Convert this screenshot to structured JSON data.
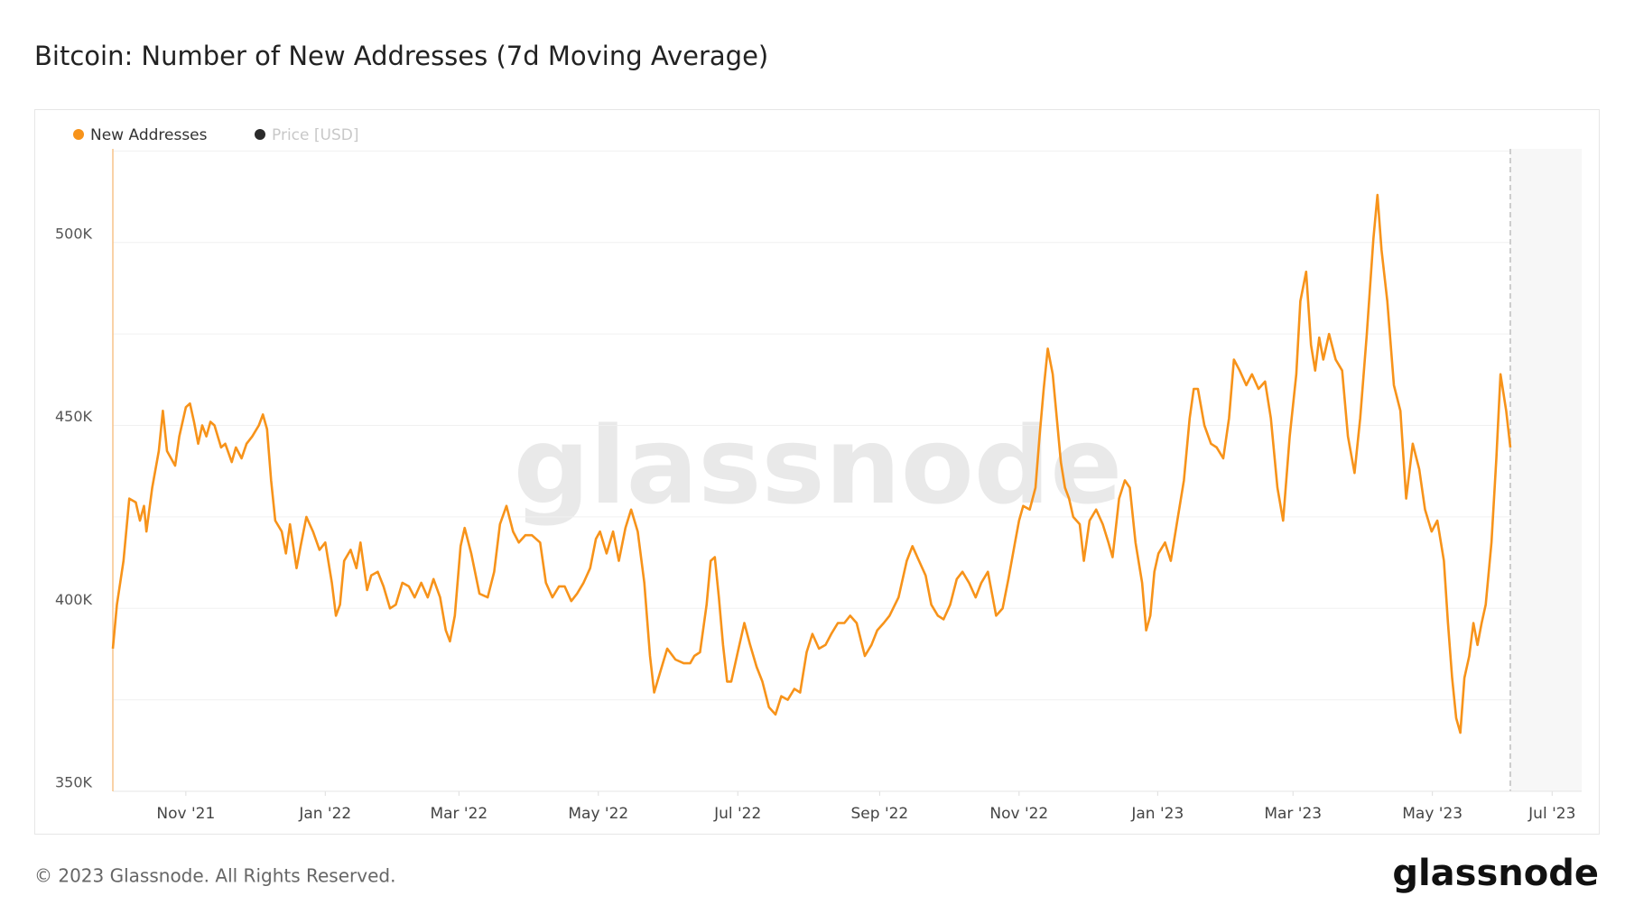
{
  "chart_data": {
    "type": "line",
    "title": "Bitcoin: Number of New Addresses (7d Moving Average)",
    "x": [
      2021.748,
      2021.753,
      2021.761,
      2021.768,
      2021.776,
      2021.781,
      2021.786,
      2021.789,
      2021.796,
      2021.804,
      2021.809,
      2021.814,
      2021.819,
      2021.824,
      2021.829,
      2021.837,
      2021.842,
      2021.847,
      2021.852,
      2021.857,
      2021.862,
      2021.867,
      2021.872,
      2021.88,
      2021.885,
      2021.893,
      2021.898,
      2021.905,
      2021.911,
      2021.918,
      2021.926,
      2021.931,
      2021.936,
      2021.941,
      2021.946,
      2021.954,
      2021.959,
      2021.964,
      2021.972,
      2021.977,
      2021.984,
      2021.992,
      2022.0,
      2022.007,
      2022.015,
      2022.02,
      2022.025,
      2022.03,
      2022.038,
      2022.045,
      2022.05,
      2022.058,
      2022.063,
      2022.071,
      2022.078,
      2022.086,
      2022.093,
      2022.101,
      2022.109,
      2022.116,
      2022.124,
      2022.132,
      2022.139,
      2022.147,
      2022.154,
      2022.159,
      2022.165,
      2022.172,
      2022.177,
      2022.185,
      2022.195,
      2022.205,
      2022.213,
      2022.22,
      2022.228,
      2022.236,
      2022.243,
      2022.251,
      2022.259,
      2022.269,
      2022.276,
      2022.284,
      2022.292,
      2022.299,
      2022.307,
      2022.314,
      2022.322,
      2022.33,
      2022.337,
      2022.342,
      2022.35,
      2022.358,
      2022.365,
      2022.373,
      2022.38,
      2022.388,
      2022.396,
      2022.403,
      2022.408,
      2022.416,
      2022.424,
      2022.434,
      2022.444,
      2022.452,
      2022.457,
      2022.464,
      2022.472,
      2022.477,
      2022.482,
      2022.487,
      2022.492,
      2022.497,
      2022.502,
      2022.51,
      2022.518,
      2022.525,
      2022.533,
      2022.54,
      2022.548,
      2022.556,
      2022.563,
      2022.571,
      2022.579,
      2022.586,
      2022.594,
      2022.601,
      2022.609,
      2022.617,
      2022.624,
      2022.632,
      2022.64,
      2022.647,
      2022.655,
      2022.665,
      2022.673,
      2022.68,
      2022.688,
      2022.695,
      2022.706,
      2022.716,
      2022.723,
      2022.731,
      2022.739,
      2022.746,
      2022.754,
      2022.761,
      2022.769,
      2022.777,
      2022.784,
      2022.792,
      2022.8,
      2022.807,
      2022.815,
      2022.825,
      2022.833,
      2022.84,
      2022.848,
      2022.853,
      2022.858,
      2022.866,
      2022.873,
      2022.878,
      2022.883,
      2022.888,
      2022.894,
      2022.899,
      2022.904,
      2022.909,
      2022.914,
      2022.919,
      2022.927,
      2022.932,
      2022.939,
      2022.947,
      2022.955,
      2022.962,
      2022.967,
      2022.975,
      2022.982,
      2022.988,
      2022.995,
      2023.003,
      2023.008,
      2023.013,
      2023.018,
      2023.023,
      2023.031,
      2023.038,
      2023.046,
      2023.054,
      2023.061,
      2023.066,
      2023.071,
      2023.079,
      2023.087,
      2023.094,
      2023.102,
      2023.109,
      2023.115,
      2023.122,
      2023.13,
      2023.137,
      2023.145,
      2023.153,
      2023.16,
      2023.168,
      2023.175,
      2023.183,
      2023.191,
      2023.196,
      2023.203,
      2023.209,
      2023.214,
      2023.219,
      2023.224,
      2023.231,
      2023.239,
      2023.247,
      2023.254,
      2023.262,
      2023.269,
      2023.277,
      2023.285,
      2023.29,
      2023.295,
      2023.302,
      2023.31,
      2023.318,
      2023.325,
      2023.333,
      2023.341,
      2023.348,
      2023.356,
      2023.363,
      2023.371,
      2023.376,
      2023.381,
      2023.386,
      2023.391,
      2023.396,
      2023.402,
      2023.407,
      2023.412,
      2023.417,
      2023.422,
      2023.429,
      2023.435,
      2023.44,
      2023.447,
      2023.452
    ],
    "series": [
      {
        "name": "New Addresses",
        "color": "#f7931a",
        "values": [
          389000,
          401000,
          413000,
          430000,
          429000,
          424000,
          428000,
          421000,
          433000,
          443000,
          454000,
          443000,
          441000,
          439000,
          447000,
          455000,
          456000,
          451000,
          445000,
          450000,
          447000,
          451000,
          450000,
          444000,
          445000,
          440000,
          444000,
          441000,
          445000,
          447000,
          450000,
          453000,
          449000,
          435000,
          424000,
          421000,
          415000,
          423000,
          411000,
          417000,
          425000,
          421000,
          416000,
          418000,
          407000,
          398000,
          401000,
          413000,
          416000,
          411000,
          418000,
          405000,
          409000,
          410000,
          406000,
          400000,
          401000,
          407000,
          406000,
          403000,
          407000,
          403000,
          408000,
          403000,
          394000,
          391000,
          398000,
          417000,
          422000,
          415000,
          404000,
          403000,
          410000,
          423000,
          428000,
          421000,
          418000,
          420000,
          420000,
          418000,
          407000,
          403000,
          406000,
          406000,
          402000,
          404000,
          407000,
          411000,
          419000,
          421000,
          415000,
          421000,
          413000,
          422000,
          427000,
          421000,
          407000,
          387000,
          377000,
          383000,
          389000,
          386000,
          385000,
          385000,
          387000,
          388000,
          401000,
          413000,
          414000,
          403000,
          390000,
          380000,
          380000,
          388000,
          396000,
          390000,
          384000,
          380000,
          373000,
          371000,
          376000,
          375000,
          378000,
          377000,
          388000,
          393000,
          389000,
          390000,
          393000,
          396000,
          396000,
          398000,
          396000,
          387000,
          390000,
          394000,
          396000,
          398000,
          403000,
          413000,
          417000,
          413000,
          409000,
          401000,
          398000,
          397000,
          401000,
          408000,
          410000,
          407000,
          403000,
          407000,
          410000,
          398000,
          400000,
          408000,
          418000,
          424000,
          428000,
          427000,
          433000,
          447000,
          460000,
          471000,
          464000,
          452000,
          440000,
          433000,
          430000,
          425000,
          423000,
          413000,
          424000,
          427000,
          423000,
          418000,
          414000,
          430000,
          435000,
          433000,
          418000,
          407000,
          394000,
          398000,
          410000,
          415000,
          418000,
          413000,
          424000,
          435000,
          452000,
          460000,
          460000,
          450000,
          445000,
          444000,
          441000,
          452000,
          468000,
          465000,
          461000,
          464000,
          460000,
          462000,
          452000,
          433000,
          424000,
          447000,
          464000,
          484000,
          492000,
          472000,
          465000,
          474000,
          468000,
          475000,
          468000,
          465000,
          447000,
          437000,
          452000,
          475000,
          501000,
          513000,
          498000,
          484000,
          461000,
          454000,
          430000,
          445000,
          438000,
          427000,
          421000,
          424000,
          413000,
          396000,
          381000,
          370000,
          366000,
          381000,
          387000,
          396000,
          390000,
          396000,
          401000,
          418000,
          441000,
          464000,
          454000,
          444000
        ]
      }
    ],
    "hidden_series": [
      {
        "name": "Price [USD]",
        "color": "#2b2b2b"
      }
    ],
    "xlim": [
      2021.748,
      2023.539
    ],
    "xticks": [
      {
        "value": 2021.837,
        "label": "Nov '21"
      },
      {
        "value": 2022.007,
        "label": "Jan '22"
      },
      {
        "value": 2022.17,
        "label": "Mar '22"
      },
      {
        "value": 2022.34,
        "label": "May '22"
      },
      {
        "value": 2022.51,
        "label": "Jul '22"
      },
      {
        "value": 2022.683,
        "label": "Sep '22"
      },
      {
        "value": 2022.853,
        "label": "Nov '22"
      },
      {
        "value": 2023.022,
        "label": "Jan '23"
      },
      {
        "value": 2023.187,
        "label": "Mar '23"
      },
      {
        "value": 2023.357,
        "label": "May '23"
      },
      {
        "value": 2023.503,
        "label": "Jul '23"
      }
    ],
    "ylim": [
      350000,
      525600
    ],
    "yticks": [
      {
        "value": 350000,
        "label": "350K"
      },
      {
        "value": 400000,
        "label": "400K"
      },
      {
        "value": 450000,
        "label": "450K"
      },
      {
        "value": 500000,
        "label": "500K"
      }
    ],
    "minor_yticks": [
      375000,
      425000,
      475000,
      525000
    ],
    "grid": true,
    "legend": "top-left"
  },
  "watermark": "glassnode",
  "footer": {
    "copyright": "© 2023 Glassnode. All Rights Reserved.",
    "logo": "glassnode"
  }
}
